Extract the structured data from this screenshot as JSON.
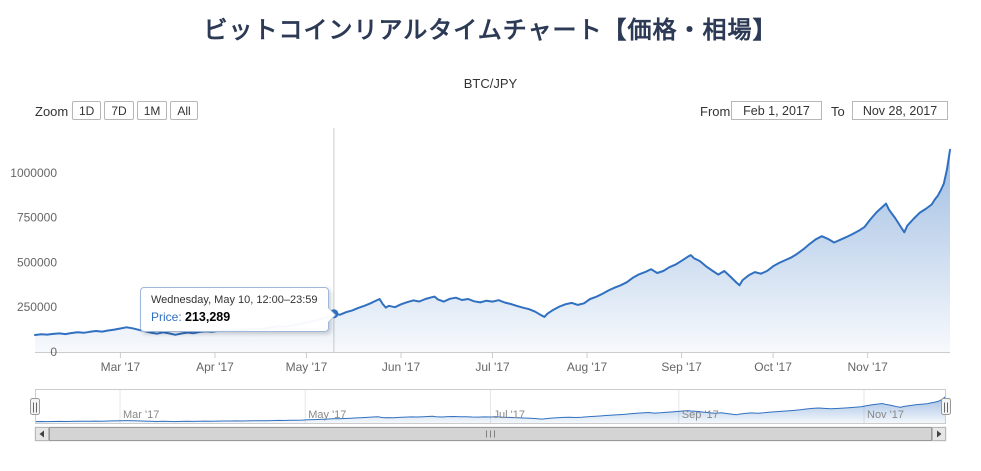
{
  "page": {
    "title": "ビットコインリアルタイムチャート【価格・相場】"
  },
  "chart": {
    "subtitle": "BTC/JPY",
    "zoom_label": "Zoom",
    "zoom_buttons": [
      "1D",
      "7D",
      "1M",
      "All"
    ],
    "from_label": "From",
    "from_value": "Feb 1, 2017",
    "to_label": "To",
    "to_value": "Nov 28, 2017"
  },
  "tooltip": {
    "date": "Wednesday, May 10, 12:00–23:59",
    "price_label": "Price:",
    "price_value": "213,289"
  },
  "chart_data": {
    "type": "area",
    "title": "ビットコインリアルタイムチャート【価格・相場】",
    "subtitle": "BTC/JPY",
    "xlabel": "",
    "ylabel": "",
    "x_unit": "days since Feb 1, 2017",
    "x_range": [
      0,
      300
    ],
    "ylim": [
      0,
      1250000
    ],
    "grid": false,
    "legend": "none",
    "y_ticks": [
      {
        "value": 0,
        "label": "0"
      },
      {
        "value": 250000,
        "label": "250000"
      },
      {
        "value": 500000,
        "label": "500000"
      },
      {
        "value": 750000,
        "label": "750000"
      },
      {
        "value": 1000000,
        "label": "1000000"
      }
    ],
    "x_axis_labels": [
      {
        "label": "Mar '17",
        "day": 28
      },
      {
        "label": "Apr '17",
        "day": 59
      },
      {
        "label": "May '17",
        "day": 89
      },
      {
        "label": "Jun '17",
        "day": 120
      },
      {
        "label": "Jul '17",
        "day": 150
      },
      {
        "label": "Aug '17",
        "day": 181
      },
      {
        "label": "Sep '17",
        "day": 212
      },
      {
        "label": "Oct '17",
        "day": 242
      },
      {
        "label": "Nov '17",
        "day": 273
      }
    ],
    "navigator_labels": [
      {
        "label": "Mar '17",
        "day": 28
      },
      {
        "label": "May '17",
        "day": 89
      },
      {
        "label": "Jul '17",
        "day": 150
      },
      {
        "label": "Sep '17",
        "day": 212
      },
      {
        "label": "Nov '17",
        "day": 273
      }
    ],
    "highlight_point": {
      "day": 98,
      "price": 213289,
      "date": "Wednesday, May 10, 12:00–23:59"
    },
    "colors": {
      "line": "#3070c0",
      "fill_top": "rgba(48,112,192,0.5)",
      "fill_bottom": "rgba(48,112,192,0.04)",
      "crosshair": "#cccccc",
      "axis": "#cccccc",
      "label": "#666666",
      "nav_label": "#888888",
      "nav_grid": "#e6e6e6",
      "nav_outline": "#cccccc"
    },
    "series": [
      {
        "name": "Price",
        "color": "#3070c0",
        "points": [
          [
            0,
            95000
          ],
          [
            2,
            99000
          ],
          [
            4,
            97000
          ],
          [
            6,
            101000
          ],
          [
            8,
            104000
          ],
          [
            10,
            100000
          ],
          [
            12,
            106000
          ],
          [
            14,
            110000
          ],
          [
            16,
            107000
          ],
          [
            18,
            113000
          ],
          [
            20,
            117000
          ],
          [
            22,
            114000
          ],
          [
            24,
            120000
          ],
          [
            26,
            125000
          ],
          [
            28,
            131000
          ],
          [
            30,
            138000
          ],
          [
            32,
            132000
          ],
          [
            34,
            124000
          ],
          [
            36,
            116000
          ],
          [
            38,
            108000
          ],
          [
            40,
            102000
          ],
          [
            42,
            110000
          ],
          [
            44,
            104000
          ],
          [
            46,
            96000
          ],
          [
            48,
            103000
          ],
          [
            50,
            109000
          ],
          [
            52,
            105000
          ],
          [
            54,
            112000
          ],
          [
            56,
            116000
          ],
          [
            58,
            113000
          ],
          [
            60,
            118000
          ],
          [
            62,
            122000
          ],
          [
            64,
            119000
          ],
          [
            66,
            124000
          ],
          [
            68,
            121000
          ],
          [
            70,
            127000
          ],
          [
            72,
            131000
          ],
          [
            74,
            128000
          ],
          [
            76,
            134000
          ],
          [
            78,
            139000
          ],
          [
            80,
            144000
          ],
          [
            82,
            141000
          ],
          [
            84,
            148000
          ],
          [
            86,
            153000
          ],
          [
            88,
            159000
          ],
          [
            90,
            168000
          ],
          [
            92,
            176000
          ],
          [
            94,
            185000
          ],
          [
            96,
            198000
          ],
          [
            98,
            213289
          ],
          [
            100,
            208000
          ],
          [
            102,
            222000
          ],
          [
            104,
            232000
          ],
          [
            106,
            246000
          ],
          [
            108,
            258000
          ],
          [
            110,
            272000
          ],
          [
            112,
            288000
          ],
          [
            113,
            296000
          ],
          [
            114,
            268000
          ],
          [
            115,
            248000
          ],
          [
            116,
            258000
          ],
          [
            118,
            250000
          ],
          [
            120,
            266000
          ],
          [
            122,
            278000
          ],
          [
            124,
            288000
          ],
          [
            126,
            282000
          ],
          [
            128,
            296000
          ],
          [
            130,
            305000
          ],
          [
            131,
            309000
          ],
          [
            132,
            294000
          ],
          [
            134,
            281000
          ],
          [
            136,
            297000
          ],
          [
            138,
            303000
          ],
          [
            140,
            290000
          ],
          [
            142,
            296000
          ],
          [
            144,
            283000
          ],
          [
            146,
            277000
          ],
          [
            148,
            286000
          ],
          [
            150,
            281000
          ],
          [
            152,
            289000
          ],
          [
            154,
            276000
          ],
          [
            156,
            268000
          ],
          [
            158,
            257000
          ],
          [
            160,
            247000
          ],
          [
            162,
            239000
          ],
          [
            164,
            225000
          ],
          [
            166,
            205000
          ],
          [
            167,
            196000
          ],
          [
            168,
            214000
          ],
          [
            170,
            236000
          ],
          [
            172,
            254000
          ],
          [
            174,
            267000
          ],
          [
            176,
            274000
          ],
          [
            178,
            263000
          ],
          [
            180,
            272000
          ],
          [
            182,
            296000
          ],
          [
            184,
            308000
          ],
          [
            186,
            324000
          ],
          [
            188,
            343000
          ],
          [
            190,
            359000
          ],
          [
            192,
            372000
          ],
          [
            194,
            389000
          ],
          [
            196,
            414000
          ],
          [
            198,
            433000
          ],
          [
            200,
            446000
          ],
          [
            202,
            462000
          ],
          [
            204,
            441000
          ],
          [
            206,
            452000
          ],
          [
            208,
            473000
          ],
          [
            210,
            488000
          ],
          [
            212,
            509000
          ],
          [
            214,
            531000
          ],
          [
            215,
            541000
          ],
          [
            216,
            524000
          ],
          [
            218,
            507000
          ],
          [
            220,
            478000
          ],
          [
            222,
            455000
          ],
          [
            224,
            432000
          ],
          [
            226,
            452000
          ],
          [
            228,
            421000
          ],
          [
            230,
            387000
          ],
          [
            231,
            372000
          ],
          [
            232,
            401000
          ],
          [
            234,
            428000
          ],
          [
            236,
            446000
          ],
          [
            238,
            437000
          ],
          [
            240,
            452000
          ],
          [
            242,
            478000
          ],
          [
            244,
            497000
          ],
          [
            246,
            513000
          ],
          [
            248,
            528000
          ],
          [
            250,
            549000
          ],
          [
            252,
            574000
          ],
          [
            254,
            603000
          ],
          [
            256,
            629000
          ],
          [
            258,
            646000
          ],
          [
            260,
            631000
          ],
          [
            262,
            611000
          ],
          [
            264,
            626000
          ],
          [
            266,
            641000
          ],
          [
            268,
            658000
          ],
          [
            270,
            676000
          ],
          [
            272,
            698000
          ],
          [
            274,
            742000
          ],
          [
            276,
            781000
          ],
          [
            278,
            812000
          ],
          [
            279,
            828000
          ],
          [
            280,
            794000
          ],
          [
            282,
            748000
          ],
          [
            284,
            695000
          ],
          [
            285,
            668000
          ],
          [
            286,
            705000
          ],
          [
            288,
            742000
          ],
          [
            290,
            776000
          ],
          [
            292,
            798000
          ],
          [
            294,
            823000
          ],
          [
            295,
            851000
          ],
          [
            296,
            872000
          ],
          [
            297,
            904000
          ],
          [
            298,
            941000
          ],
          [
            299,
            1020000
          ],
          [
            300,
            1128000
          ]
        ]
      }
    ]
  }
}
